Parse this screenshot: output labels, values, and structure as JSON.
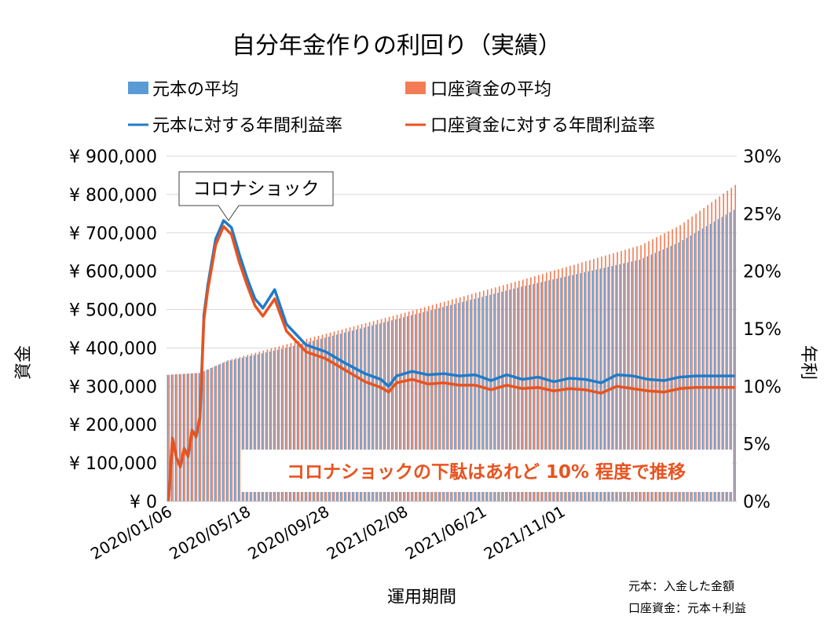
{
  "chart_data": {
    "type": "bar",
    "title": "自分年金作りの利回り（実績）",
    "xlabel": "運用期間",
    "ylabel_left": "資金",
    "ylabel_right": "年利",
    "ylim_left": [
      0,
      900000
    ],
    "ylim_right": [
      0,
      30
    ],
    "left_ticks": [
      "¥ 0",
      "¥ 100,000",
      "¥ 200,000",
      "¥ 300,000",
      "¥ 400,000",
      "¥ 500,000",
      "¥ 600,000",
      "¥ 700,000",
      "¥ 800,000",
      "¥ 900,000"
    ],
    "right_ticks": [
      "0%",
      "5%",
      "10%",
      "15%",
      "20%",
      "25%",
      "30%"
    ],
    "x_tick_labels": [
      "2020/01/06",
      "2020/05/18",
      "2020/09/28",
      "2021/02/08",
      "2021/06/21",
      "2021/11/01"
    ],
    "grid": true,
    "legend_position": "top",
    "series": [
      {
        "name": "元本の平均",
        "kind": "bar",
        "color": "#5b9bd5",
        "range": [
          330000,
          760000
        ],
        "knots": [
          [
            0,
            330000
          ],
          [
            8,
            335000
          ],
          [
            15,
            365000
          ],
          [
            30,
            400000
          ],
          [
            60,
            480000
          ],
          [
            90,
            560000
          ],
          [
            120,
            630000
          ],
          [
            130,
            675000
          ],
          [
            144,
            760000
          ]
        ]
      },
      {
        "name": "口座資金の平均",
        "kind": "bar",
        "color": "#f47c55",
        "range": [
          330000,
          825000
        ],
        "knots": [
          [
            0,
            330000
          ],
          [
            8,
            335000
          ],
          [
            15,
            368000
          ],
          [
            30,
            410000
          ],
          [
            60,
            492000
          ],
          [
            90,
            578000
          ],
          [
            120,
            668000
          ],
          [
            130,
            720000
          ],
          [
            144,
            825000
          ]
        ]
      },
      {
        "name": "元本に対する年間利益率",
        "kind": "line",
        "color": "#1f7bc9",
        "range_percent": [
          9.5,
          24.4
        ],
        "knots": [
          [
            0,
            0
          ],
          [
            1,
            5.5
          ],
          [
            2,
            3.8
          ],
          [
            3,
            3.0
          ],
          [
            4,
            4.6
          ],
          [
            5,
            3.9
          ],
          [
            6,
            6.2
          ],
          [
            7,
            5.6
          ],
          [
            8,
            7.4
          ],
          [
            9,
            16.2
          ],
          [
            10,
            18.8
          ],
          [
            12,
            22.8
          ],
          [
            14,
            24.4
          ],
          [
            16,
            23.8
          ],
          [
            18,
            21.5
          ],
          [
            20,
            19.4
          ],
          [
            22,
            17.6
          ],
          [
            24,
            16.8
          ],
          [
            27,
            18.4
          ],
          [
            30,
            15.4
          ],
          [
            35,
            13.6
          ],
          [
            40,
            13.0
          ],
          [
            45,
            12.0
          ],
          [
            50,
            11.1
          ],
          [
            54,
            10.6
          ],
          [
            56,
            10.0
          ],
          [
            58,
            10.9
          ],
          [
            62,
            11.3
          ],
          [
            66,
            11.0
          ],
          [
            70,
            11.1
          ],
          [
            74,
            10.9
          ],
          [
            78,
            11.0
          ],
          [
            82,
            10.5
          ],
          [
            86,
            11.0
          ],
          [
            90,
            10.6
          ],
          [
            94,
            10.8
          ],
          [
            98,
            10.4
          ],
          [
            102,
            10.7
          ],
          [
            106,
            10.6
          ],
          [
            110,
            10.3
          ],
          [
            114,
            11.0
          ],
          [
            118,
            10.9
          ],
          [
            122,
            10.6
          ],
          [
            126,
            10.5
          ],
          [
            130,
            10.8
          ],
          [
            134,
            10.9
          ],
          [
            138,
            10.9
          ],
          [
            144,
            10.9
          ]
        ]
      },
      {
        "name": "口座資金に対する年間利益率",
        "kind": "line",
        "color": "#e8531f",
        "range_percent": [
          9.3,
          23.9
        ],
        "knots": [
          [
            0,
            0
          ],
          [
            1,
            5.5
          ],
          [
            2,
            3.8
          ],
          [
            3,
            3.0
          ],
          [
            4,
            4.6
          ],
          [
            5,
            3.9
          ],
          [
            6,
            6.2
          ],
          [
            7,
            5.6
          ],
          [
            8,
            7.2
          ],
          [
            9,
            15.8
          ],
          [
            10,
            18.4
          ],
          [
            12,
            22.3
          ],
          [
            14,
            23.9
          ],
          [
            16,
            23.2
          ],
          [
            18,
            20.8
          ],
          [
            20,
            18.8
          ],
          [
            22,
            17.0
          ],
          [
            24,
            16.1
          ],
          [
            27,
            17.6
          ],
          [
            30,
            14.8
          ],
          [
            35,
            13.0
          ],
          [
            40,
            12.4
          ],
          [
            45,
            11.4
          ],
          [
            50,
            10.4
          ],
          [
            54,
            9.9
          ],
          [
            56,
            9.5
          ],
          [
            58,
            10.3
          ],
          [
            62,
            10.6
          ],
          [
            66,
            10.2
          ],
          [
            70,
            10.3
          ],
          [
            74,
            10.1
          ],
          [
            78,
            10.1
          ],
          [
            82,
            9.7
          ],
          [
            86,
            10.1
          ],
          [
            90,
            9.8
          ],
          [
            94,
            9.9
          ],
          [
            98,
            9.6
          ],
          [
            102,
            9.8
          ],
          [
            106,
            9.7
          ],
          [
            110,
            9.4
          ],
          [
            114,
            10.0
          ],
          [
            118,
            9.8
          ],
          [
            122,
            9.6
          ],
          [
            126,
            9.5
          ],
          [
            130,
            9.8
          ],
          [
            134,
            9.9
          ],
          [
            138,
            9.9
          ],
          [
            144,
            9.9
          ]
        ]
      }
    ],
    "annotations": [
      {
        "text": "コロナショック",
        "points_to_index": 14
      },
      {
        "text": "コロナショックの下駄はあれど 10% 程度で推移",
        "color": "#e8531f"
      }
    ],
    "footnotes": [
      "元本：入金した金額",
      "口座資金：元本＋利益"
    ]
  }
}
